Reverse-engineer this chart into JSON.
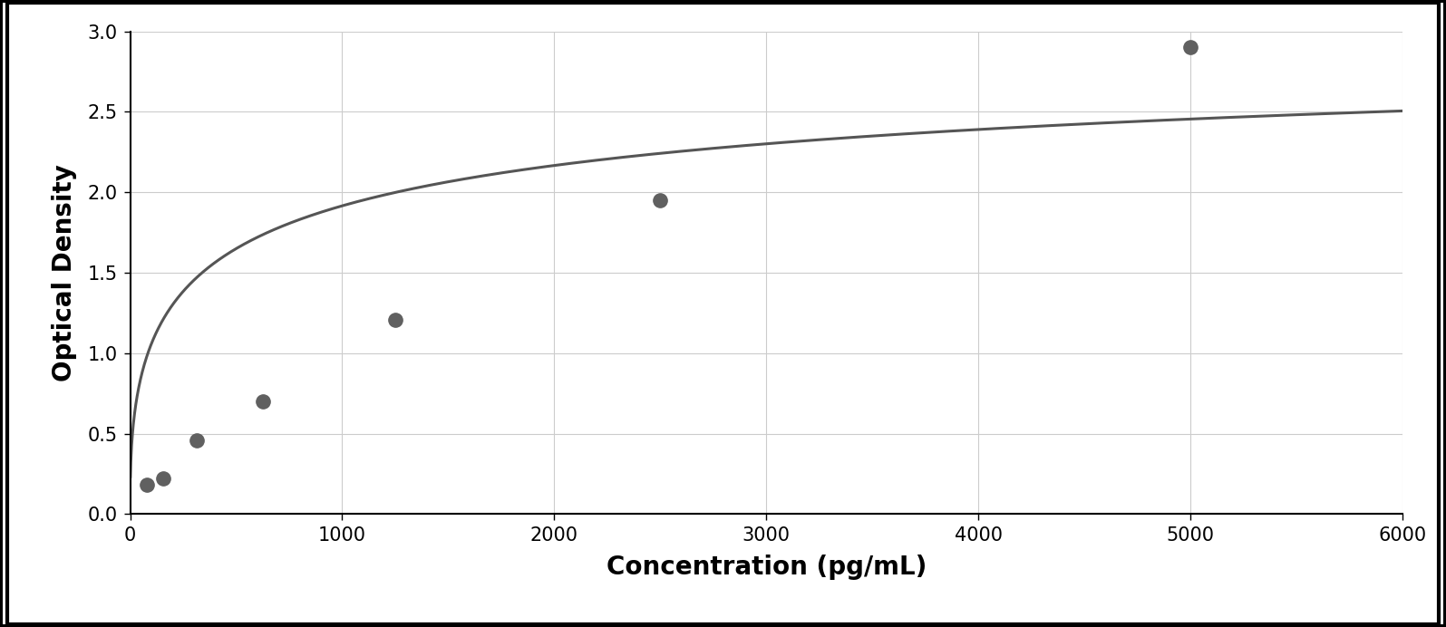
{
  "x_data": [
    78,
    156,
    313,
    625,
    1250,
    2500,
    5000
  ],
  "y_data": [
    0.18,
    0.22,
    0.46,
    0.7,
    1.21,
    1.95,
    2.9
  ],
  "xlabel": "Concentration (pg/mL)",
  "ylabel": "Optical Density",
  "xlim": [
    0,
    6000
  ],
  "ylim": [
    0,
    3.0
  ],
  "xticks": [
    0,
    1000,
    2000,
    3000,
    4000,
    5000,
    6000
  ],
  "yticks": [
    0,
    0.5,
    1.0,
    1.5,
    2.0,
    2.5,
    3.0
  ],
  "marker_color": "#606060",
  "line_color": "#555555",
  "background_color": "#ffffff",
  "plot_bg_color": "#ffffff",
  "grid_color": "#cccccc",
  "xlabel_fontsize": 20,
  "ylabel_fontsize": 20,
  "tick_fontsize": 15,
  "marker_size": 11,
  "line_width": 2.2,
  "border_color": "#000000",
  "figure_border_lw": 3.0
}
